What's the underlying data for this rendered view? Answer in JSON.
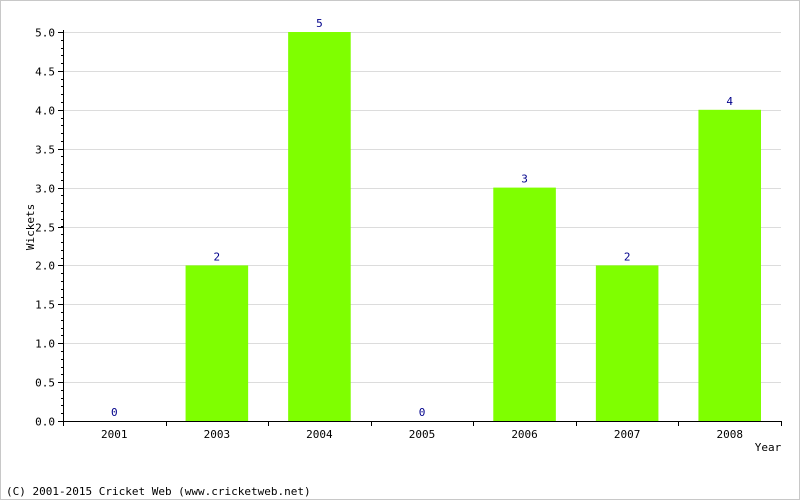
{
  "chart_data": {
    "type": "bar",
    "categories": [
      "2001",
      "2003",
      "2004",
      "2005",
      "2006",
      "2007",
      "2008"
    ],
    "values": [
      0,
      2,
      5,
      0,
      3,
      2,
      4
    ],
    "value_labels": [
      "0",
      "2",
      "5",
      "0",
      "3",
      "2",
      "4"
    ],
    "title": "",
    "xlabel": "Year",
    "ylabel": "Wickets",
    "ylim": [
      0,
      5
    ],
    "yticks": [
      0,
      0.5,
      1,
      1.5,
      2,
      2.5,
      3,
      3.5,
      4,
      4.5,
      5
    ],
    "ytick_labels": [
      "0.0",
      "0.5",
      "1.0",
      "1.5",
      "2.0",
      "2.5",
      "3.0",
      "3.5",
      "4.0",
      "4.5",
      "5.0"
    ],
    "grid": true,
    "bar_color": "#7fff00",
    "label_color": "#00008b"
  },
  "footer": {
    "copyright": "(C) 2001-2015 Cricket Web (www.cricketweb.net)"
  }
}
